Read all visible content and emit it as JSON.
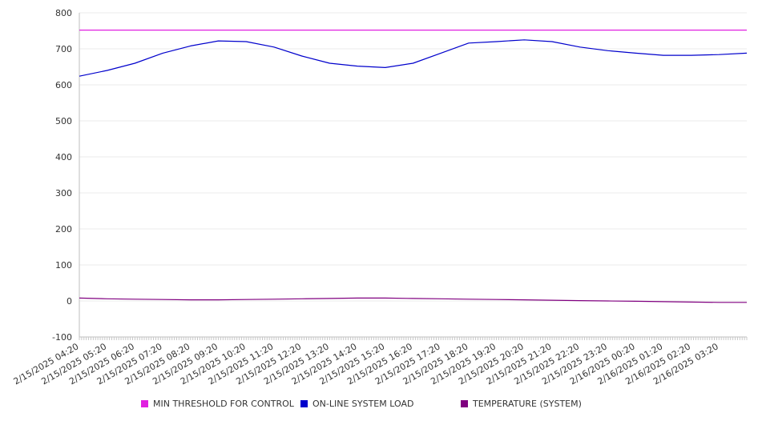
{
  "chart_data": {
    "type": "line",
    "title": "",
    "xlabel": "",
    "ylabel": "",
    "ylim": [
      -100,
      800
    ],
    "yticks": [
      -100,
      0,
      100,
      200,
      300,
      400,
      500,
      600,
      700,
      800
    ],
    "grid": "horizontal",
    "legend_position": "bottom",
    "x_start": "2/15/2025 04:20",
    "x_end": "2/16/2025 04:20",
    "x_tick_labels": [
      "2/15/2025 04:20",
      "2/15/2025 05:20",
      "2/15/2025 06:20",
      "2/15/2025 07:20",
      "2/15/2025 08:20",
      "2/15/2025 09:20",
      "2/15/2025 10:20",
      "2/15/2025 11:20",
      "2/15/2025 12:20",
      "2/15/2025 13:20",
      "2/15/2025 14:20",
      "2/15/2025 15:20",
      "2/15/2025 16:20",
      "2/15/2025 17:20",
      "2/15/2025 18:20",
      "2/15/2025 19:20",
      "2/15/2025 20:20",
      "2/15/2025 21:20",
      "2/15/2025 22:20",
      "2/15/2025 23:20",
      "2/16/2025 00:20",
      "2/16/2025 01:20",
      "2/16/2025 02:20",
      "2/16/2025 03:20"
    ],
    "x": [
      "2/15/2025 04:20",
      "2/15/2025 05:20",
      "2/15/2025 06:20",
      "2/15/2025 07:20",
      "2/15/2025 08:20",
      "2/15/2025 09:20",
      "2/15/2025 10:20",
      "2/15/2025 11:20",
      "2/15/2025 12:20",
      "2/15/2025 13:20",
      "2/15/2025 14:20",
      "2/15/2025 15:20",
      "2/15/2025 16:20",
      "2/15/2025 17:20",
      "2/15/2025 18:20",
      "2/15/2025 19:20",
      "2/15/2025 20:20",
      "2/15/2025 21:20",
      "2/15/2025 22:20",
      "2/15/2025 23:20",
      "2/16/2025 00:20",
      "2/16/2025 01:20",
      "2/16/2025 02:20",
      "2/16/2025 03:20",
      "2/16/2025 04:20"
    ],
    "series": [
      {
        "name": "MIN THRESHOLD FOR CONTROL",
        "color": "#e020e0",
        "values": [
          752,
          752,
          752,
          752,
          752,
          752,
          752,
          752,
          752,
          752,
          752,
          752,
          752,
          752,
          752,
          752,
          752,
          752,
          752,
          752,
          752,
          752,
          752,
          752,
          752
        ]
      },
      {
        "name": "ON-LINE SYSTEM LOAD",
        "color": "#0000cc",
        "values": [
          624,
          640,
          660,
          688,
          708,
          722,
          720,
          705,
          680,
          660,
          652,
          648,
          660,
          688,
          716,
          720,
          725,
          720,
          705,
          695,
          688,
          682,
          682,
          684,
          688
        ]
      },
      {
        "name": "TEMPERATURE (SYSTEM)",
        "color": "#800080",
        "values": [
          8,
          6,
          5,
          4,
          3,
          3,
          4,
          5,
          6,
          7,
          8,
          8,
          7,
          6,
          5,
          4,
          3,
          2,
          1,
          0,
          -1,
          -2,
          -3,
          -4,
          -4
        ]
      }
    ]
  }
}
